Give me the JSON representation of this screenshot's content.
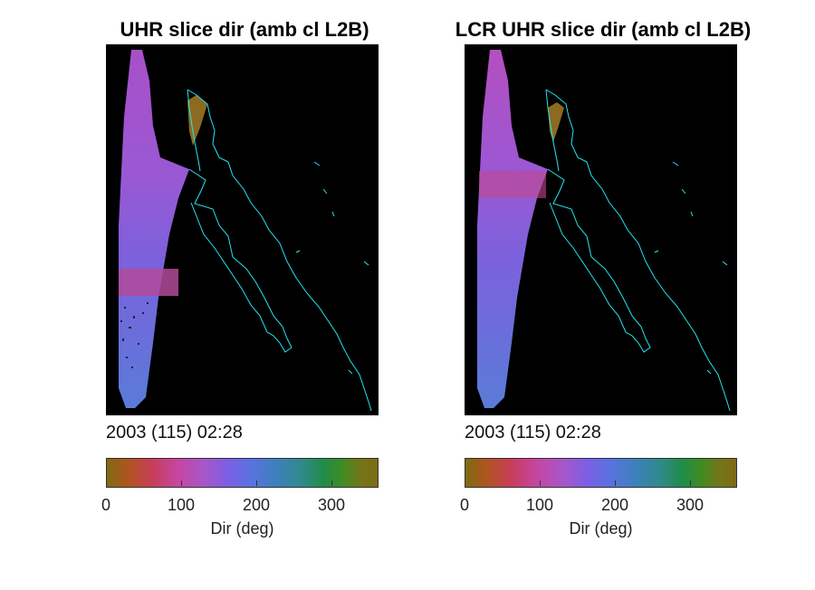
{
  "panels": [
    {
      "title": "UHR slice dir (amb cl L2B)",
      "timestamp": "2003 (115) 02:28",
      "colorbar": {
        "label": "Dir (deg)",
        "ticks": [
          "0",
          "100",
          "200",
          "300"
        ]
      }
    },
    {
      "title": "LCR UHR slice dir (amb cl L2B)",
      "timestamp": "2003 (115) 02:28",
      "colorbar": {
        "label": "Dir (deg)",
        "ticks": [
          "0",
          "100",
          "200",
          "300"
        ]
      }
    }
  ],
  "colors": {
    "background": "#000000",
    "coastline": "#22e5ee",
    "swath_main": "#9c55d2",
    "swath_low": "#6a73db",
    "swath_band": "#c2478f",
    "wind_patch": "#8c6a20"
  },
  "colormap": {
    "name": "circular direction",
    "range": [
      0,
      360
    ],
    "stops": [
      "#7d6b12",
      "#b0541f",
      "#c83d5a",
      "#c645a0",
      "#a857c9",
      "#7a5fe4",
      "#5a72df",
      "#3f7fbf",
      "#2f8a8a",
      "#1f8c4a",
      "#3f8c23",
      "#757518",
      "#7d6b12"
    ]
  }
}
